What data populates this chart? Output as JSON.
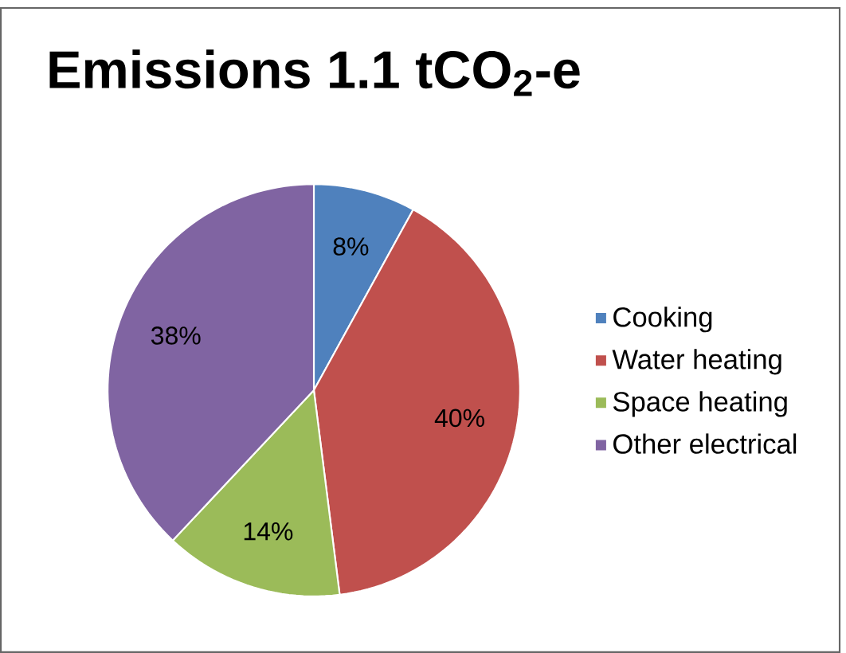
{
  "chart_data": {
    "type": "pie",
    "title": "Emissions 1.1 tCO$_{2}$-e",
    "categories": [
      "Cooking",
      "Water heating",
      "Space heating",
      "Other electrical"
    ],
    "values": [
      8,
      40,
      14,
      38
    ],
    "colors": [
      "#4f81bd",
      "#c0504d",
      "#9bbb59",
      "#8064a2"
    ],
    "value_labels": [
      "8%",
      "40%",
      "14%",
      "38%"
    ],
    "legend": "right"
  }
}
